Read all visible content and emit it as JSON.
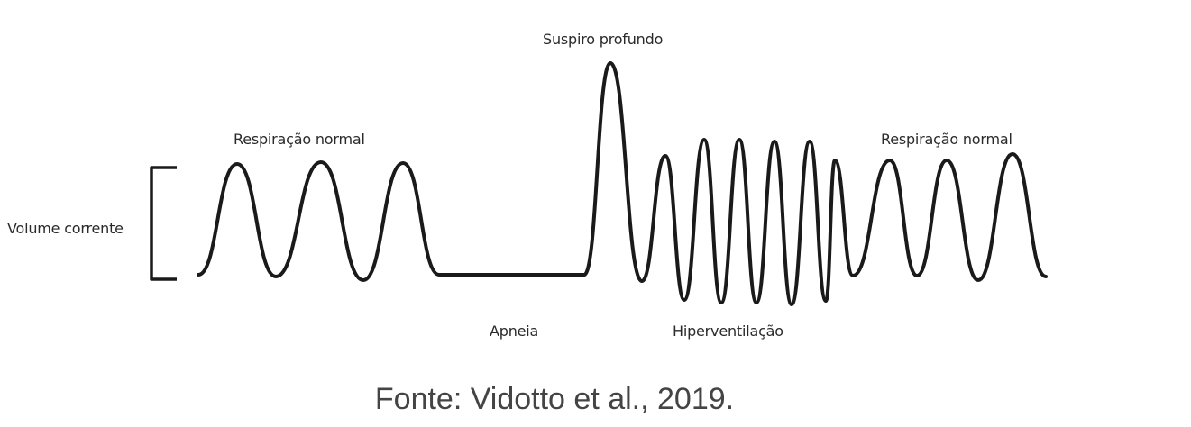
{
  "labels": {
    "tidal_volume": "Volume corrente",
    "normal_breathing_left": "Respiração normal",
    "apnea": "Apneia",
    "deep_sigh": "Suspiro profundo",
    "hyperventilation": "Hiperventilação",
    "normal_breathing_right": "Respiração normal"
  },
  "caption": "Fonte: Vidotto et al., 2019.",
  "colors": {
    "waveform": "#1a1a1a",
    "text": "#2a2a2a",
    "caption": "#444444"
  }
}
